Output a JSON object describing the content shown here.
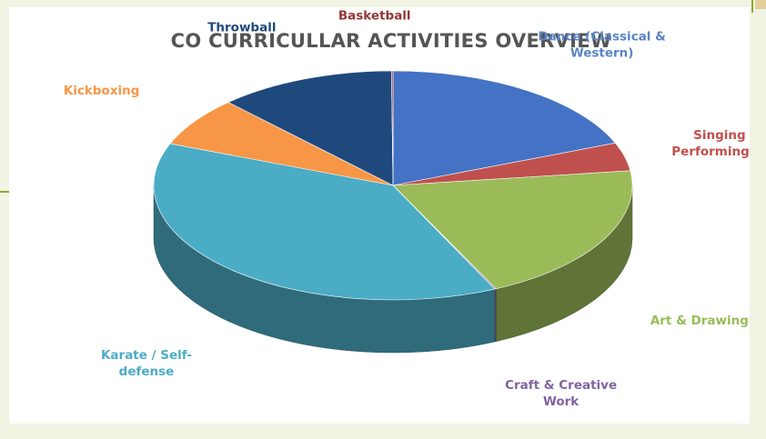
{
  "chart_data": {
    "type": "pie",
    "style": "3d",
    "title": "CO CURRICULLAR ACTIVITIES OVERVIEW",
    "legend": "none",
    "slices": [
      {
        "label": [
          "Dance (Classical &",
          "Western)"
        ],
        "value": 19,
        "color": "#4472c4",
        "label_color": "#5a84c6"
      },
      {
        "label": [
          "Singing &",
          "Performing Arts"
        ],
        "value": 4,
        "color": "#c0504d",
        "label_color": "#c0504d"
      },
      {
        "label": [
          "Art & Drawing"
        ],
        "value": 20,
        "color": "#9bbb59",
        "label_color": "#9bbb59"
      },
      {
        "label": [
          "Craft & Creative",
          "Work"
        ],
        "value": 0.1,
        "color": "#8064a2",
        "label_color": "#8064a2"
      },
      {
        "label": [
          "Karate / Self-",
          "defense"
        ],
        "value": 38,
        "color": "#4bacc6",
        "label_color": "#4bacc6"
      },
      {
        "label": [
          "Kickboxing"
        ],
        "value": 7,
        "color": "#f79646",
        "label_color": "#f79646"
      },
      {
        "label": [
          "Throwball"
        ],
        "value": 12,
        "color": "#1f497d",
        "label_color": "#1f497d"
      },
      {
        "label": [
          "Basketball"
        ],
        "value": 0.1,
        "color": "#943634",
        "label_color": "#943634"
      }
    ]
  }
}
